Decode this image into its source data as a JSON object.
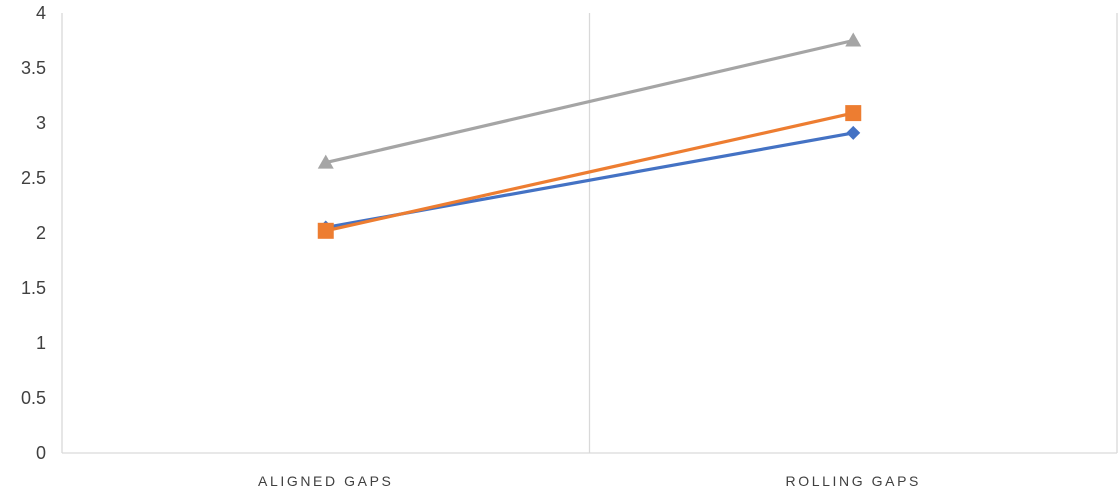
{
  "chart_data": {
    "type": "line",
    "title": "",
    "xlabel": "",
    "ylabel": "",
    "categories": [
      "ALIGNED GAPS",
      "ROLLING GAPS"
    ],
    "ylim": [
      0,
      4
    ],
    "yticks": [
      0,
      0.5,
      1,
      1.5,
      2,
      2.5,
      3,
      3.5,
      4
    ],
    "ytick_labels": [
      "0",
      "0.5",
      "1",
      "1.5",
      "2",
      "2.5",
      "3",
      "3.5",
      "4"
    ],
    "grid": {
      "horizontal": false,
      "vertical_category_separators": true
    },
    "legend": "none",
    "series": [
      {
        "values": [
          2.05,
          2.91
        ],
        "color": "#4472C4",
        "marker": "diamond"
      },
      {
        "values": [
          2.02,
          3.09
        ],
        "color": "#ED7D31",
        "marker": "square"
      },
      {
        "values": [
          2.64,
          3.75
        ],
        "color": "#A5A5A5",
        "marker": "triangle"
      }
    ],
    "axis_color": "#D9D9D9",
    "text_color": "#404040"
  }
}
